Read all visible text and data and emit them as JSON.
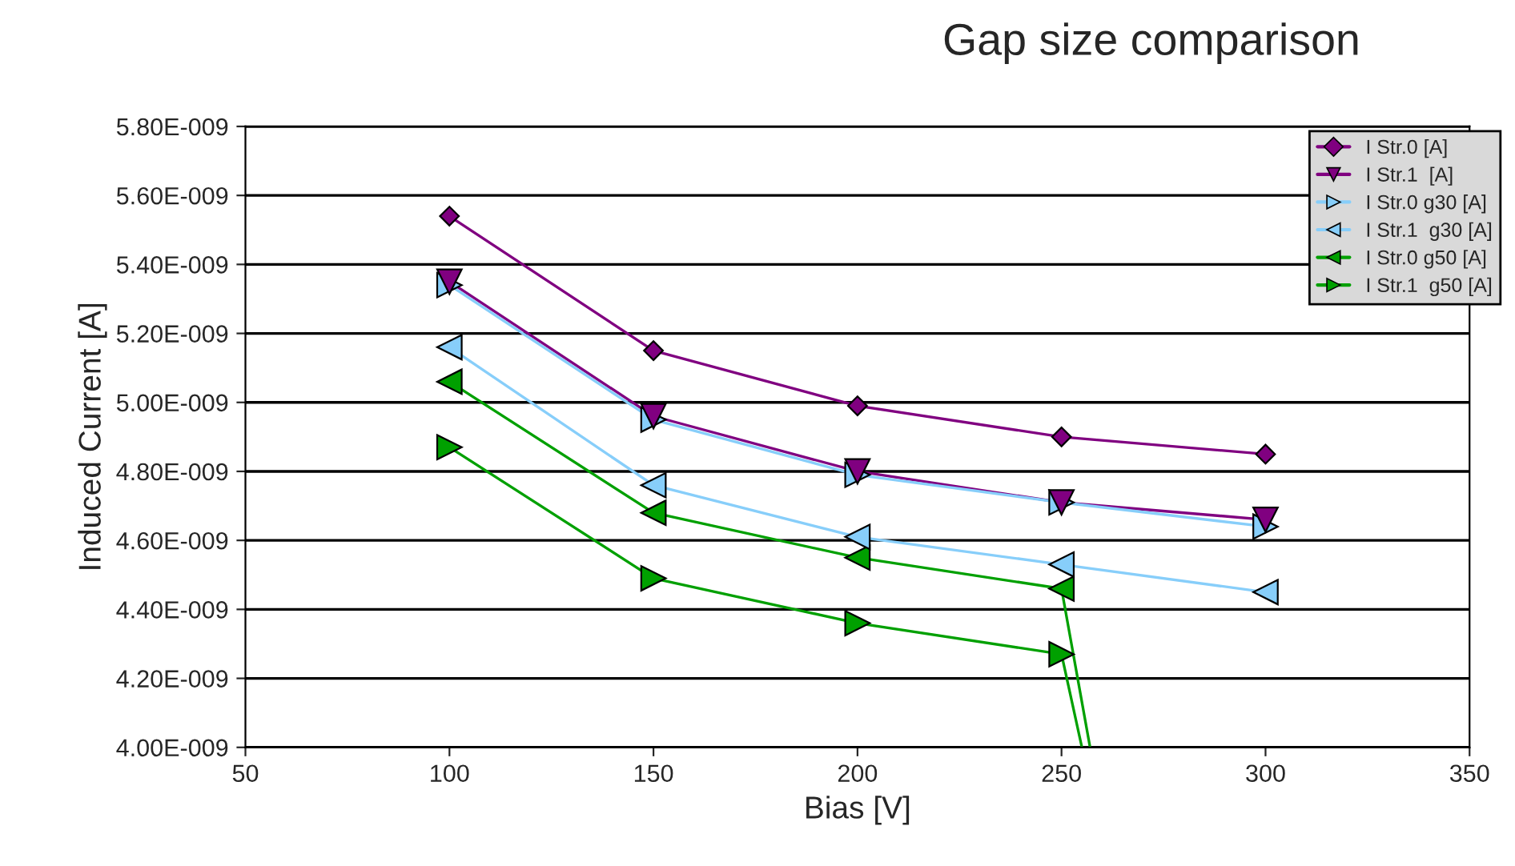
{
  "chart_data": {
    "type": "line",
    "title": "Gap size comparison",
    "xlabel": "Bias [V]",
    "ylabel": "Induced Current [A]",
    "xlim": [
      50,
      350
    ],
    "xticks": [
      50,
      100,
      150,
      200,
      250,
      300,
      350
    ],
    "ylim": [
      4e-09,
      5.8e-09
    ],
    "yticks": [
      {
        "value": 4e-09,
        "label": "4.00E-009"
      },
      {
        "value": 4.2e-09,
        "label": "4.20E-009"
      },
      {
        "value": 4.4e-09,
        "label": "4.40E-009"
      },
      {
        "value": 4.6e-09,
        "label": "4.60E-009"
      },
      {
        "value": 4.8e-09,
        "label": "4.80E-009"
      },
      {
        "value": 5e-09,
        "label": "5.00E-009"
      },
      {
        "value": 5.2e-09,
        "label": "5.20E-009"
      },
      {
        "value": 5.4e-09,
        "label": "5.40E-009"
      },
      {
        "value": 5.6e-09,
        "label": "5.60E-009"
      },
      {
        "value": 5.8e-09,
        "label": "5.80E-009"
      }
    ],
    "grid": "y",
    "legend": "top right",
    "series": [
      {
        "name": "I Str.0 [A]",
        "color": "#800080",
        "marker": "diamond",
        "x": [
          100,
          150,
          200,
          250,
          300
        ],
        "values": [
          5.54e-09,
          5.15e-09,
          4.99e-09,
          4.9e-09,
          4.85e-09
        ]
      },
      {
        "name": "I Str.1  [A]",
        "color": "#800080",
        "marker": "triangle_down",
        "x": [
          100,
          150,
          200,
          250,
          300
        ],
        "values": [
          5.35e-09,
          4.96e-09,
          4.8e-09,
          4.71e-09,
          4.66e-09
        ]
      },
      {
        "name": "I Str.0 g30 [A]",
        "color": "#87cefa",
        "marker": "triangle_right",
        "x": [
          100,
          150,
          200,
          250,
          300
        ],
        "values": [
          5.34e-09,
          4.95e-09,
          4.79e-09,
          4.71e-09,
          4.64e-09
        ]
      },
      {
        "name": "I Str.1  g30 [A]",
        "color": "#87cefa",
        "marker": "triangle_left",
        "x": [
          100,
          150,
          200,
          250,
          300
        ],
        "values": [
          5.16e-09,
          4.76e-09,
          4.61e-09,
          4.53e-09,
          4.45e-09
        ]
      },
      {
        "name": "I Str.0 g50 [A]",
        "color": "#00a000",
        "marker": "triangle_left",
        "x": [
          100,
          150,
          200,
          250,
          257
        ],
        "values": [
          5.06e-09,
          4.68e-09,
          4.55e-09,
          4.46e-09,
          4e-09
        ]
      },
      {
        "name": "I Str.1  g50 [A]",
        "color": "#00a000",
        "marker": "triangle_right",
        "x": [
          100,
          150,
          200,
          250,
          255
        ],
        "values": [
          4.87e-09,
          4.49e-09,
          4.36e-09,
          4.27e-09,
          4e-09
        ]
      }
    ]
  }
}
